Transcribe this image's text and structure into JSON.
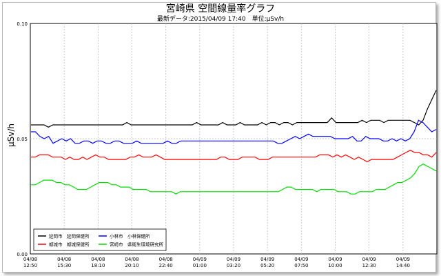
{
  "chart_data": {
    "type": "line",
    "title": "宮崎県 空間線量率グラフ",
    "subtitle": "最新データ:2015/04/09 17:40　単位:μSv/h",
    "ylabel": "μSv/h",
    "xlabel": "",
    "ylim": [
      0,
      0.1
    ],
    "yticks": [
      "0.00",
      "0.05",
      "0.10"
    ],
    "ytick_values": [
      0,
      0.05,
      0.1
    ],
    "xticks": [
      {
        "date": "04/08",
        "time": "12:50"
      },
      {
        "date": "04/08",
        "time": "15:30"
      },
      {
        "date": "04/08",
        "time": "18:10"
      },
      {
        "date": "04/08",
        "time": "20:10"
      },
      {
        "date": "04/08",
        "time": "22:40"
      },
      {
        "date": "04/09",
        "time": "01:00"
      },
      {
        "date": "04/09",
        "time": "03:20"
      },
      {
        "date": "04/09",
        "time": "05:20"
      },
      {
        "date": "04/09",
        "time": "07:50"
      },
      {
        "date": "04/09",
        "time": "10:00"
      },
      {
        "date": "04/09",
        "time": "12:30"
      },
      {
        "date": "04/09",
        "time": "14:40"
      }
    ],
    "grid": true,
    "legend_position": "bottom-left",
    "series": [
      {
        "name": "延岡市　延岡保健所",
        "color": "#000000",
        "values": [
          0.056,
          0.056,
          0.056,
          0.056,
          0.055,
          0.056,
          0.056,
          0.056,
          0.056,
          0.056,
          0.056,
          0.056,
          0.056,
          0.056,
          0.056,
          0.056,
          0.056,
          0.056,
          0.056,
          0.056,
          0.056,
          0.056,
          0.057,
          0.056,
          0.056,
          0.056,
          0.056,
          0.056,
          0.056,
          0.056,
          0.056,
          0.056,
          0.056,
          0.056,
          0.056,
          0.056,
          0.056,
          0.056,
          0.057,
          0.056,
          0.056,
          0.056,
          0.056,
          0.056,
          0.057,
          0.056,
          0.056,
          0.056,
          0.057,
          0.056,
          0.056,
          0.056,
          0.056,
          0.057,
          0.056,
          0.057,
          0.057,
          0.056,
          0.057,
          0.057,
          0.056,
          0.057,
          0.057,
          0.057,
          0.057,
          0.057,
          0.057,
          0.057,
          0.057,
          0.059,
          0.057,
          0.057,
          0.057,
          0.057,
          0.057,
          0.057,
          0.058,
          0.057,
          0.058,
          0.058,
          0.058,
          0.057,
          0.058,
          0.058,
          0.058,
          0.058,
          0.058,
          0.058,
          0.057,
          0.056,
          0.058,
          0.063,
          0.067,
          0.071
        ]
      },
      {
        "name": "小林市　小林保健所",
        "color": "#0000ff",
        "values": [
          0.053,
          0.053,
          0.051,
          0.05,
          0.051,
          0.048,
          0.049,
          0.05,
          0.049,
          0.05,
          0.048,
          0.048,
          0.049,
          0.049,
          0.048,
          0.049,
          0.049,
          0.048,
          0.048,
          0.049,
          0.049,
          0.048,
          0.048,
          0.048,
          0.049,
          0.048,
          0.048,
          0.048,
          0.048,
          0.048,
          0.048,
          0.049,
          0.048,
          0.048,
          0.049,
          0.049,
          0.049,
          0.049,
          0.049,
          0.049,
          0.049,
          0.049,
          0.049,
          0.049,
          0.049,
          0.049,
          0.049,
          0.049,
          0.049,
          0.049,
          0.049,
          0.049,
          0.049,
          0.049,
          0.049,
          0.049,
          0.048,
          0.048,
          0.049,
          0.05,
          0.051,
          0.05,
          0.051,
          0.052,
          0.051,
          0.051,
          0.051,
          0.051,
          0.051,
          0.05,
          0.05,
          0.05,
          0.05,
          0.051,
          0.049,
          0.049,
          0.051,
          0.05,
          0.05,
          0.05,
          0.049,
          0.049,
          0.05,
          0.049,
          0.05,
          0.049,
          0.05,
          0.053,
          0.058,
          0.057,
          0.055,
          0.053,
          0.054
        ]
      },
      {
        "name": "都城市　都城保健所",
        "color": "#ff0000",
        "values": [
          0.042,
          0.042,
          0.043,
          0.043,
          0.043,
          0.042,
          0.042,
          0.042,
          0.041,
          0.042,
          0.041,
          0.041,
          0.042,
          0.041,
          0.042,
          0.043,
          0.042,
          0.042,
          0.041,
          0.041,
          0.041,
          0.041,
          0.041,
          0.042,
          0.042,
          0.043,
          0.042,
          0.042,
          0.042,
          0.043,
          0.042,
          0.041,
          0.041,
          0.041,
          0.041,
          0.041,
          0.041,
          0.041,
          0.041,
          0.041,
          0.041,
          0.041,
          0.041,
          0.041,
          0.042,
          0.042,
          0.041,
          0.041,
          0.041,
          0.042,
          0.042,
          0.042,
          0.042,
          0.041,
          0.041,
          0.041,
          0.042,
          0.042,
          0.042,
          0.042,
          0.042,
          0.042,
          0.042,
          0.042,
          0.042,
          0.042,
          0.042,
          0.043,
          0.043,
          0.043,
          0.042,
          0.043,
          0.042,
          0.043,
          0.042,
          0.041,
          0.042,
          0.041,
          0.04,
          0.041,
          0.041,
          0.041,
          0.041,
          0.041,
          0.041,
          0.042,
          0.043,
          0.044,
          0.045,
          0.044,
          0.044,
          0.043,
          0.043,
          0.042,
          0.044
        ]
      },
      {
        "name": "宮崎市　県衛生環境研究所",
        "color": "#00dd00",
        "values": [
          0.03,
          0.03,
          0.031,
          0.032,
          0.032,
          0.032,
          0.031,
          0.031,
          0.03,
          0.03,
          0.029,
          0.028,
          0.028,
          0.028,
          0.029,
          0.03,
          0.031,
          0.031,
          0.031,
          0.03,
          0.03,
          0.029,
          0.029,
          0.029,
          0.028,
          0.028,
          0.028,
          0.028,
          0.027,
          0.027,
          0.027,
          0.027,
          0.027,
          0.027,
          0.026,
          0.027,
          0.027,
          0.027,
          0.027,
          0.027,
          0.027,
          0.027,
          0.027,
          0.027,
          0.027,
          0.027,
          0.027,
          0.027,
          0.027,
          0.027,
          0.027,
          0.027,
          0.027,
          0.027,
          0.027,
          0.027,
          0.027,
          0.027,
          0.027,
          0.028,
          0.029,
          0.029,
          0.028,
          0.028,
          0.028,
          0.028,
          0.028,
          0.027,
          0.028,
          0.028,
          0.028,
          0.028,
          0.027,
          0.027,
          0.027,
          0.026,
          0.026,
          0.027,
          0.027,
          0.027,
          0.027,
          0.028,
          0.028,
          0.028,
          0.029,
          0.03,
          0.031,
          0.031,
          0.032,
          0.033,
          0.035,
          0.038,
          0.039,
          0.038,
          0.037,
          0.036
        ]
      }
    ]
  }
}
